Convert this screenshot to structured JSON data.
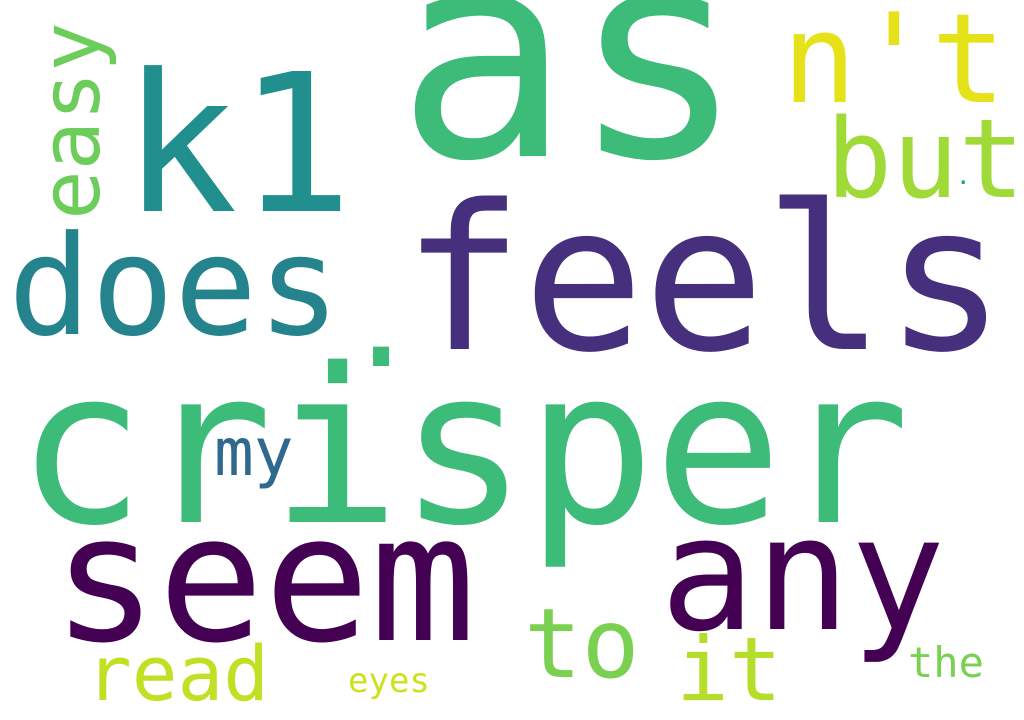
{
  "words": {
    "as": {
      "text": "as",
      "color": "#3dbb78"
    },
    "crisper": {
      "text": "crisper",
      "color": "#3dbb78"
    },
    "feels": {
      "text": "feels",
      "color": "#46307e"
    },
    "seem": {
      "text": "seem",
      "color": "#440154"
    },
    "any": {
      "text": "any",
      "color": "#440154"
    },
    "k1": {
      "text": "k1",
      "color": "#218f8d"
    },
    "does": {
      "text": "does",
      "color": "#25838e"
    },
    "nt": {
      "text": "n't",
      "color": "#e5e21a"
    },
    "but": {
      "text": "but",
      "color": "#a0da39"
    },
    "easy": {
      "text": "easy",
      "color": "#6ccd5a"
    },
    "my": {
      "text": "my",
      "color": "#30698e"
    },
    "dot": {
      "text": ".",
      "color": "#3dbb78"
    },
    "dot2": {
      "text": ".",
      "color": "#1f9a8a"
    },
    "to": {
      "text": "to",
      "color": "#7ad151"
    },
    "it": {
      "text": "it",
      "color": "#b5de2b"
    },
    "read": {
      "text": "read",
      "color": "#c2df23"
    },
    "the": {
      "text": "the",
      "color": "#7ad151"
    },
    "eyes": {
      "text": "eyes",
      "color": "#cde11d"
    }
  }
}
